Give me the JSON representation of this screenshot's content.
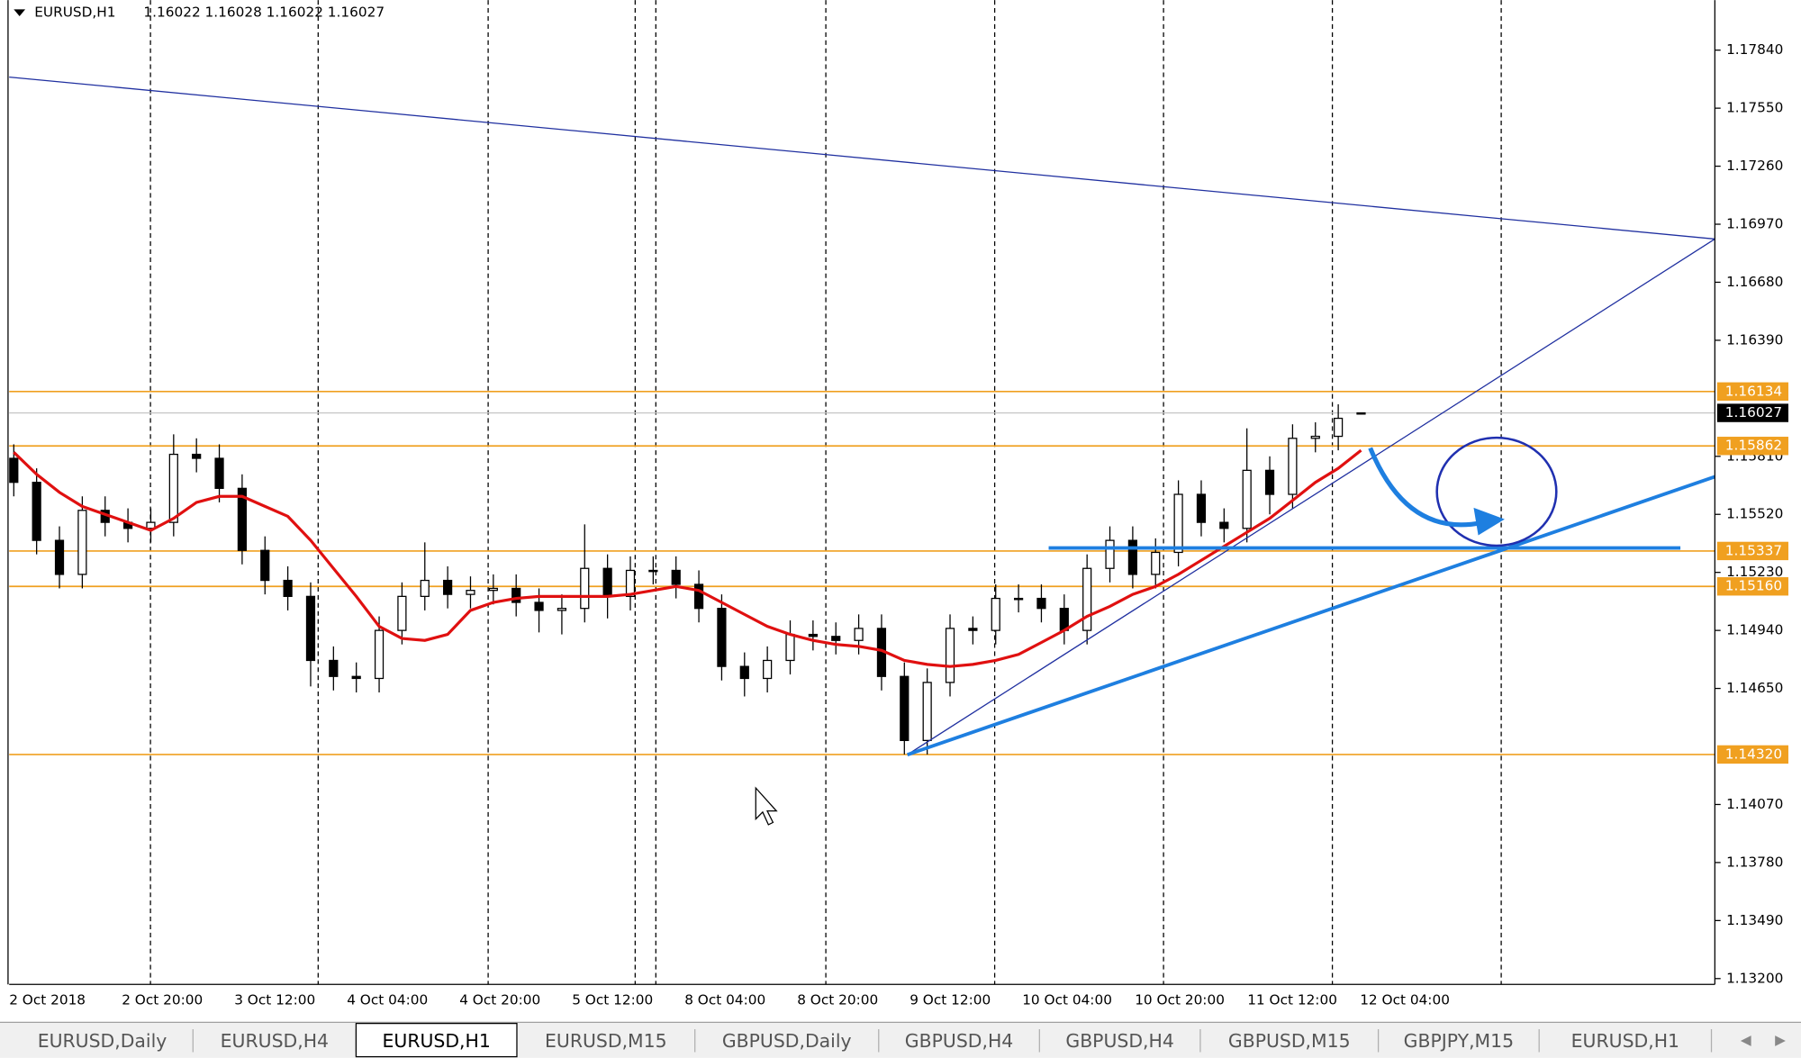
{
  "header": {
    "symbol": "EURUSD,H1",
    "ohlc": "1.16022 1.16028 1.16022 1.16027"
  },
  "chart_data": {
    "type": "candlestick",
    "candles": {
      "open": [
        1.158,
        1.1568,
        1.1539,
        1.1522,
        1.1554,
        1.1548,
        1.1545,
        1.1548,
        1.1582,
        1.158,
        1.1565,
        1.1534,
        1.1519,
        1.1511,
        1.1479,
        1.1471,
        1.147,
        1.1494,
        1.1511,
        1.1519,
        1.1512,
        1.1514,
        1.1515,
        1.1508,
        1.1504,
        1.1505,
        1.1525,
        1.1511,
        1.1524,
        1.1524,
        1.1517,
        1.1505,
        1.1476,
        1.147,
        1.1479,
        1.1492,
        1.1491,
        1.1489,
        1.1495,
        1.1471,
        1.1439,
        1.1468,
        1.1495,
        1.1494,
        1.151,
        1.151,
        1.1505,
        1.1494,
        1.1525,
        1.1539,
        1.1522,
        1.1533,
        1.1562,
        1.1548,
        1.1545,
        1.1574,
        1.1562,
        1.159,
        1.1591,
        1.16022
      ],
      "high": [
        1.1587,
        1.1575,
        1.1546,
        1.1561,
        1.1561,
        1.1555,
        1.1555,
        1.1592,
        1.159,
        1.1587,
        1.1572,
        1.1541,
        1.1526,
        1.1518,
        1.1486,
        1.1478,
        1.1501,
        1.1518,
        1.1538,
        1.1526,
        1.1521,
        1.1522,
        1.1522,
        1.1515,
        1.1512,
        1.1547,
        1.1532,
        1.1531,
        1.1531,
        1.1531,
        1.1524,
        1.1512,
        1.1483,
        1.1486,
        1.1499,
        1.1499,
        1.1498,
        1.1502,
        1.1502,
        1.1478,
        1.1475,
        1.1502,
        1.1501,
        1.1517,
        1.1517,
        1.1517,
        1.1512,
        1.1532,
        1.1546,
        1.1546,
        1.154,
        1.1569,
        1.1569,
        1.1555,
        1.1595,
        1.1581,
        1.1597,
        1.1598,
        1.1607,
        1.16028
      ],
      "low": [
        1.1561,
        1.1532,
        1.1515,
        1.1515,
        1.1541,
        1.1538,
        1.1538,
        1.1541,
        1.1573,
        1.1558,
        1.1527,
        1.1512,
        1.1504,
        1.1466,
        1.1464,
        1.1463,
        1.1463,
        1.1487,
        1.1504,
        1.1505,
        1.1505,
        1.1507,
        1.1501,
        1.1493,
        1.1492,
        1.1498,
        1.15,
        1.1504,
        1.1517,
        1.151,
        1.1498,
        1.1469,
        1.1461,
        1.1463,
        1.1472,
        1.1484,
        1.1482,
        1.1482,
        1.1464,
        1.1432,
        1.1432,
        1.1461,
        1.1487,
        1.1487,
        1.1503,
        1.1498,
        1.1487,
        1.1487,
        1.1518,
        1.1515,
        1.1515,
        1.1526,
        1.1541,
        1.1538,
        1.1538,
        1.1552,
        1.1555,
        1.1583,
        1.1584,
        1.16022
      ],
      "close": [
        1.1568,
        1.1539,
        1.1522,
        1.1554,
        1.1548,
        1.1545,
        1.1548,
        1.1582,
        1.158,
        1.1565,
        1.1534,
        1.1519,
        1.1511,
        1.1479,
        1.1471,
        1.147,
        1.1494,
        1.1511,
        1.1519,
        1.1512,
        1.1514,
        1.1515,
        1.1508,
        1.1504,
        1.1505,
        1.1525,
        1.1511,
        1.1524,
        1.1524,
        1.1517,
        1.1505,
        1.1476,
        1.147,
        1.1479,
        1.1492,
        1.1491,
        1.1489,
        1.1495,
        1.1471,
        1.1439,
        1.1468,
        1.1495,
        1.1494,
        1.151,
        1.151,
        1.1505,
        1.1494,
        1.1525,
        1.1539,
        1.1522,
        1.1533,
        1.1562,
        1.1548,
        1.1545,
        1.1574,
        1.1562,
        1.159,
        1.1591,
        1.16,
        1.16027
      ]
    },
    "ma": {
      "color": "#e01010",
      "values": [
        1.1583,
        1.1572,
        1.1563,
        1.1556,
        1.1552,
        1.1548,
        1.1544,
        1.155,
        1.1558,
        1.1561,
        1.1561,
        1.1556,
        1.1551,
        1.1539,
        1.1525,
        1.1511,
        1.1496,
        1.149,
        1.1489,
        1.1492,
        1.1504,
        1.1508,
        1.151,
        1.1511,
        1.1511,
        1.1511,
        1.1511,
        1.1512,
        1.1514,
        1.1516,
        1.1514,
        1.1508,
        1.1502,
        1.1496,
        1.1492,
        1.1489,
        1.1487,
        1.1486,
        1.1484,
        1.1479,
        1.1477,
        1.1476,
        1.1477,
        1.1479,
        1.1482,
        1.1488,
        1.1494,
        1.1501,
        1.1506,
        1.1512,
        1.1516,
        1.1522,
        1.1529,
        1.1536,
        1.1543,
        1.155,
        1.1559,
        1.1568,
        1.1575,
        1.1584
      ]
    },
    "ylim": [
      1.13171,
      1.1809
    ],
    "yticks": [
      {
        "value": 1.1784,
        "label": "1.17840"
      },
      {
        "value": 1.1755,
        "label": "1.17550"
      },
      {
        "value": 1.1726,
        "label": "1.17260"
      },
      {
        "value": 1.1697,
        "label": "1.16970"
      },
      {
        "value": 1.1668,
        "label": "1.16680"
      },
      {
        "value": 1.1639,
        "label": "1.16390"
      },
      {
        "value": 1.1581,
        "label": "1.15810"
      },
      {
        "value": 1.1552,
        "label": "1.15520"
      },
      {
        "value": 1.1523,
        "label": "1.15230"
      },
      {
        "value": 1.1494,
        "label": "1.14940"
      },
      {
        "value": 1.1465,
        "label": "1.14650"
      },
      {
        "value": 1.1407,
        "label": "1.14070"
      },
      {
        "value": 1.1378,
        "label": "1.13780"
      },
      {
        "value": 1.1349,
        "label": "1.13490"
      },
      {
        "value": 1.132,
        "label": "1.13200"
      }
    ],
    "levels": {
      "color": "#f0a020",
      "values": [
        1.16134,
        1.15862,
        1.15337,
        1.1516,
        1.1432
      ],
      "value_labels": [
        "1.16134",
        "1.15862",
        "1.15337",
        "1.15160",
        "1.14320"
      ]
    },
    "current": {
      "value": 1.16027,
      "label": "1.16027"
    },
    "x_labels": [
      "2 Oct 2018",
      "2 Oct 20:00",
      "3 Oct 12:00",
      "4 Oct 04:00",
      "4 Oct 20:00",
      "5 Oct 12:00",
      "8 Oct 04:00",
      "8 Oct 20:00",
      "9 Oct 12:00",
      "10 Oct 04:00",
      "10 Oct 20:00",
      "11 Oct 12:00",
      "12 Oct 04:00"
    ]
  },
  "tabs": [
    "EURUSD,Daily",
    "EURUSD,H4",
    "EURUSD,H1",
    "EURUSD,M15",
    "GBPUSD,Daily",
    "GBPUSD,H4",
    "GBPUSD,H4",
    "GBPUSD,M15",
    "GBPJPY,M15",
    "EURUSD,H1"
  ],
  "active_tab": 2
}
